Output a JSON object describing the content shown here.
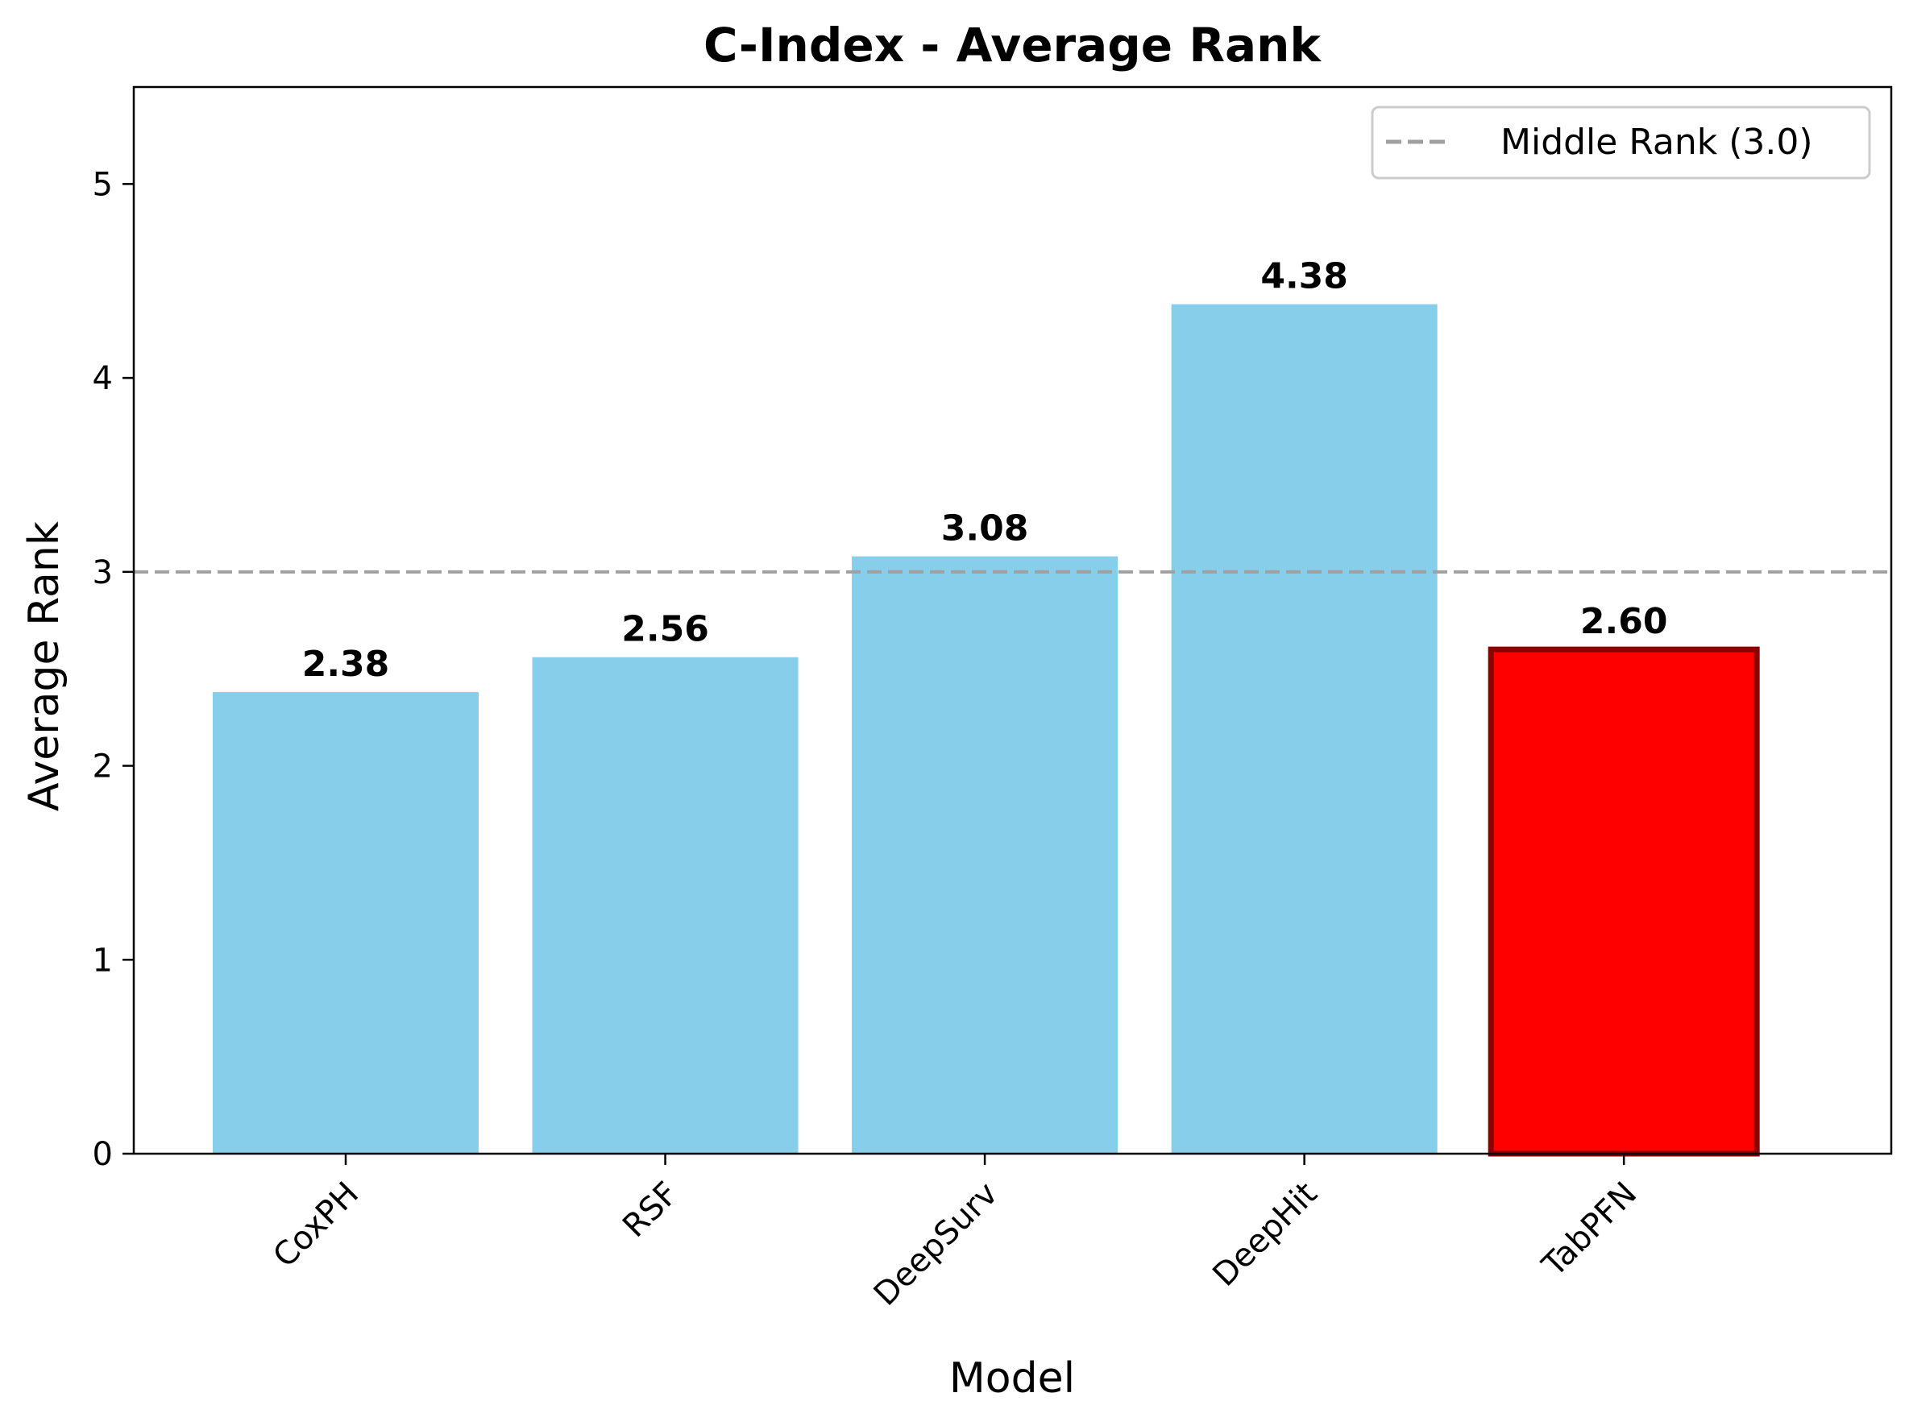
{
  "chart_data": {
    "type": "bar",
    "title": "C-Index - Average Rank",
    "xlabel": "Model",
    "ylabel": "Average Rank",
    "categories": [
      "CoxPH",
      "RSF",
      "DeepSurv",
      "DeepHit",
      "TabPFN"
    ],
    "values": [
      2.38,
      2.56,
      3.08,
      4.38,
      2.6
    ],
    "value_labels": [
      "2.38",
      "2.56",
      "3.08",
      "4.38",
      "2.60"
    ],
    "ylim": [
      0,
      5.5
    ],
    "yticks": [
      0,
      1,
      2,
      3,
      4,
      5
    ],
    "grid": false,
    "reference_line": {
      "value": 3.0,
      "label": "Middle Rank (3.0)",
      "color": "#a0a0a0",
      "style": "dashed"
    },
    "legend": {
      "position": "top-right",
      "entries": [
        "Middle Rank (3.0)"
      ]
    },
    "colors": {
      "default_bar": "#87ceeb",
      "highlight_bar": "#ff0000",
      "highlight_edge": "#8b0000"
    },
    "highlight_category": "TabPFN"
  }
}
